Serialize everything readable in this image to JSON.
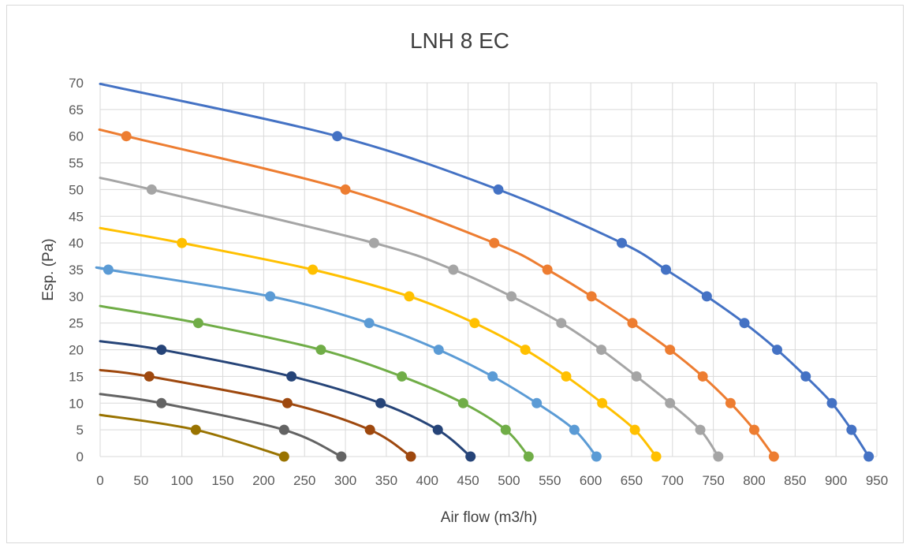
{
  "chart_data": {
    "type": "line",
    "title": "LNH 8 EC",
    "xlabel": "Air flow (m3/h)",
    "ylabel": "Esp. (Pa)",
    "xlim": [
      0,
      950
    ],
    "ylim": [
      0,
      70
    ],
    "xticks": [
      "0",
      "50",
      "100",
      "150",
      "200",
      "250",
      "300",
      "350",
      "400",
      "450",
      "500",
      "550",
      "600",
      "650",
      "700",
      "750",
      "800",
      "850",
      "900",
      "950"
    ],
    "yticks": [
      "0",
      "5",
      "10",
      "15",
      "20",
      "25",
      "30",
      "35",
      "40",
      "45",
      "50",
      "55",
      "60",
      "65",
      "70"
    ],
    "grid": true,
    "legend": "none",
    "series": [
      {
        "color": "#4472C4",
        "start": [
          0,
          69.8
        ],
        "points": [
          [
            290,
            60
          ],
          [
            487,
            50
          ],
          [
            638,
            40
          ],
          [
            692,
            35
          ],
          [
            742,
            30
          ],
          [
            788,
            25
          ],
          [
            828,
            20
          ],
          [
            863,
            15
          ],
          [
            895,
            10
          ],
          [
            919,
            5
          ],
          [
            940,
            0
          ]
        ]
      },
      {
        "color": "#ED7D31",
        "start": [
          0,
          61.2
        ],
        "points": [
          [
            32,
            60
          ],
          [
            300,
            50
          ],
          [
            482,
            40
          ],
          [
            547,
            35
          ],
          [
            601,
            30
          ],
          [
            651,
            25
          ],
          [
            697,
            20
          ],
          [
            737,
            15
          ],
          [
            771,
            10
          ],
          [
            800,
            5
          ],
          [
            824,
            0
          ]
        ]
      },
      {
        "color": "#A5A5A5",
        "start": [
          0,
          52.2
        ],
        "points": [
          [
            63,
            50
          ],
          [
            335,
            40
          ],
          [
            432,
            35
          ],
          [
            503,
            30
          ],
          [
            564,
            25
          ],
          [
            613,
            20
          ],
          [
            656,
            15
          ],
          [
            697,
            10
          ],
          [
            734,
            5
          ],
          [
            756,
            0
          ]
        ]
      },
      {
        "color": "#FFC000",
        "start": [
          0,
          42.8
        ],
        "points": [
          [
            100,
            40
          ],
          [
            260,
            35
          ],
          [
            378,
            30
          ],
          [
            458,
            25
          ],
          [
            520,
            20
          ],
          [
            570,
            15
          ],
          [
            614,
            10
          ],
          [
            654,
            5
          ],
          [
            680,
            0
          ]
        ]
      },
      {
        "color": "#5B9BD5",
        "start": [
          10,
          35.1
        ],
        "points": [
          [
            10,
            35
          ],
          [
            208,
            30
          ],
          [
            329,
            25
          ],
          [
            414,
            20
          ],
          [
            480,
            15
          ],
          [
            534,
            10
          ],
          [
            580,
            5
          ],
          [
            607,
            0
          ]
        ]
      },
      {
        "color": "#70AD47",
        "start": [
          0,
          28.2
        ],
        "points": [
          [
            120,
            25
          ],
          [
            270,
            20
          ],
          [
            369,
            15
          ],
          [
            444,
            10
          ],
          [
            496,
            5
          ],
          [
            524,
            0
          ]
        ]
      },
      {
        "color": "#264478",
        "start": [
          0,
          21.6
        ],
        "points": [
          [
            75,
            20
          ],
          [
            234,
            15
          ],
          [
            343,
            10
          ],
          [
            413,
            5
          ],
          [
            453,
            0
          ]
        ]
      },
      {
        "color": "#9E480E",
        "start": [
          0,
          16.2
        ],
        "points": [
          [
            60,
            15
          ],
          [
            229,
            10
          ],
          [
            330,
            5
          ],
          [
            380,
            0
          ]
        ]
      },
      {
        "color": "#636363",
        "start": [
          0,
          11.7
        ],
        "points": [
          [
            75,
            10
          ],
          [
            225,
            5
          ],
          [
            295,
            0
          ]
        ]
      },
      {
        "color": "#997300",
        "start": [
          0,
          7.8
        ],
        "points": [
          [
            117,
            5
          ],
          [
            225,
            0
          ]
        ]
      }
    ]
  }
}
